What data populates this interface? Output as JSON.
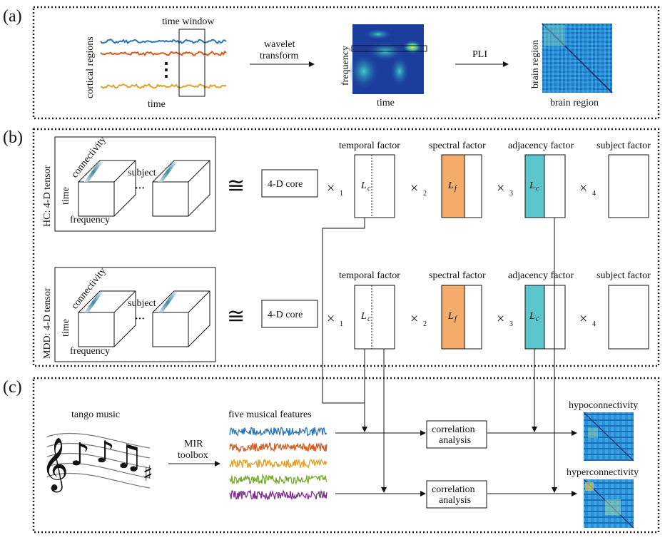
{
  "panels": {
    "a": {
      "letter": "(a)",
      "signal_axis_y": "cortical regions",
      "signal_axis_x": "time",
      "window_label": "time window",
      "vdots": "⋮",
      "arrow1_label_line1": "wavelet",
      "arrow1_label_line2": "transform",
      "spectrogram_y": "frequency",
      "spectrogram_x": "time",
      "arrow2_label": "PLI",
      "matrix_y": "brain region",
      "matrix_x": "brain region"
    },
    "b": {
      "letter": "(b)",
      "tensor_hc_label": "HC: 4-D tensor",
      "tensor_mdd_label": "MDD: 4-D tensor",
      "axis_connectivity": "connectivity",
      "axis_time": "time",
      "axis_frequency": "frequency",
      "axis_subject": "subject",
      "ellipsis": "···",
      "approx": "≅",
      "core_label": "4-D core",
      "times": "×",
      "mode1": "1",
      "mode2": "2",
      "mode3": "3",
      "mode4": "4",
      "temporal_factor": "temporal factor",
      "spectral_factor": "spectral factor",
      "adjacency_factor": "adjacency factor",
      "subject_factor": "subject factor",
      "lc_main": "L",
      "lc_sub": "c",
      "lf_main": "L",
      "lf_sub": "f"
    },
    "c": {
      "letter": "(c)",
      "music_label": "tango music",
      "arrow_label_line1": "MIR",
      "arrow_label_line2": "toolbox",
      "features_label": "five musical features",
      "corr1_line1": "correlation",
      "corr1_line2": "analysis",
      "corr2_line1": "correlation",
      "corr2_line2": "analysis",
      "hypo_label": "hypoconnectivity",
      "hyper_label": "hyperconnectivity"
    }
  },
  "colors": {
    "spectral_fill": "#f5ab6b",
    "adjacency_fill": "#5bc7cc",
    "signal_blue": "#2a74b8",
    "signal_orange": "#d95a1e",
    "signal_yellow": "#e3a12b",
    "signal_green": "#75ac30",
    "signal_purple": "#7a2f8f",
    "spectrogram_bg": "#1b3d9e",
    "matrix_bg": "#2a8bd6"
  }
}
